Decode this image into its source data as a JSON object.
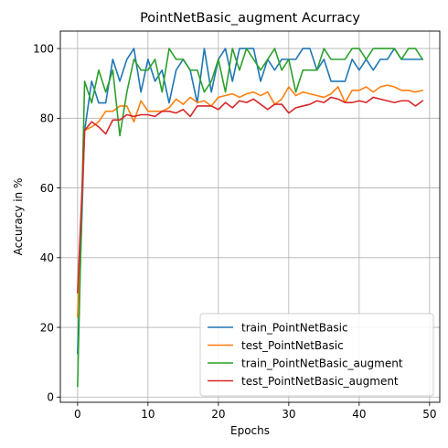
{
  "chart_data": {
    "type": "line",
    "title": "PointNetBasic_augment Acurracy",
    "xlabel": "Epochs",
    "ylabel": "Accuracy in %",
    "xlim": [
      -2.45,
      51.45
    ],
    "ylim": [
      -1.5,
      105
    ],
    "xticks": [
      0,
      10,
      20,
      30,
      40,
      50
    ],
    "yticks": [
      0,
      20,
      40,
      60,
      80,
      100
    ],
    "grid": true,
    "legend_position": "lower-right",
    "x": [
      0,
      1,
      2,
      3,
      4,
      5,
      6,
      7,
      8,
      9,
      10,
      11,
      12,
      13,
      14,
      15,
      16,
      17,
      18,
      19,
      20,
      21,
      22,
      23,
      24,
      25,
      26,
      27,
      28,
      29,
      30,
      31,
      32,
      33,
      34,
      35,
      36,
      37,
      38,
      39,
      40,
      41,
      42,
      43,
      44,
      45,
      46,
      47,
      48,
      49
    ],
    "series": [
      {
        "name": "train_PointNetBasic",
        "color": "#1f77b4",
        "values": [
          12.5,
          76.5,
          90.6,
          84.4,
          84.4,
          96.9,
          90.6,
          96.9,
          100,
          87.5,
          96.9,
          90.6,
          93.8,
          84.4,
          93.8,
          96.9,
          93.8,
          84.4,
          100,
          87.5,
          96.9,
          100,
          90.6,
          100,
          100,
          100,
          90.6,
          96.9,
          93.8,
          96.9,
          96.9,
          96.9,
          100,
          100,
          93.8,
          96.9,
          90.6,
          90.6,
          90.6,
          96.9,
          93.8,
          96.9,
          93.8,
          96.9,
          96.9,
          100,
          96.9,
          96.9,
          96.9,
          96.9
        ]
      },
      {
        "name": "test_PointNetBasic",
        "color": "#ff7f0e",
        "values": [
          23.0,
          76.5,
          77.5,
          79.0,
          82.0,
          82.0,
          83.5,
          83.5,
          79.0,
          85.0,
          82.0,
          82.0,
          82.0,
          83.0,
          85.5,
          84.0,
          86.0,
          84.5,
          85.0,
          83.5,
          86.0,
          86.5,
          87.0,
          86.0,
          87.0,
          87.5,
          86.5,
          87.5,
          84.0,
          85.5,
          89.0,
          86.5,
          87.5,
          87.0,
          86.5,
          86.0,
          87.0,
          89.0,
          84.5,
          88.0,
          88.0,
          89.0,
          87.5,
          89.0,
          89.5,
          89.0,
          88.0,
          88.0,
          87.5,
          88.0
        ]
      },
      {
        "name": "train_PointNetBasic_augment",
        "color": "#2ca02c",
        "values": [
          3.1,
          90.6,
          84.4,
          93.8,
          87.5,
          93.8,
          75.0,
          87.5,
          96.9,
          93.8,
          93.8,
          96.9,
          87.5,
          100,
          96.9,
          96.9,
          93.8,
          93.8,
          87.5,
          90.6,
          96.9,
          87.5,
          100,
          93.8,
          100,
          96.9,
          93.8,
          96.9,
          100,
          93.8,
          96.9,
          87.5,
          93.8,
          93.8,
          93.8,
          100,
          96.9,
          96.9,
          96.9,
          100,
          100,
          96.9,
          100,
          100,
          100,
          100,
          96.9,
          100,
          100,
          96.9
        ]
      },
      {
        "name": "test_PointNetBasic_augment",
        "color": "#d62728",
        "values": [
          30.0,
          76.5,
          79.0,
          77.5,
          75.5,
          79.5,
          79.5,
          81.0,
          80.5,
          81.0,
          81.0,
          80.5,
          82.0,
          82.0,
          81.5,
          82.5,
          80.5,
          83.5,
          83.5,
          83.5,
          82.5,
          84.5,
          83.0,
          85.0,
          84.5,
          85.5,
          84.0,
          82.5,
          84.0,
          84.0,
          81.5,
          83.0,
          83.5,
          84.0,
          85.0,
          84.5,
          86.0,
          85.5,
          84.5,
          84.5,
          85.0,
          84.5,
          86.0,
          85.5,
          85.0,
          84.5,
          85.0,
          85.0,
          83.5,
          85.0
        ]
      }
    ]
  }
}
